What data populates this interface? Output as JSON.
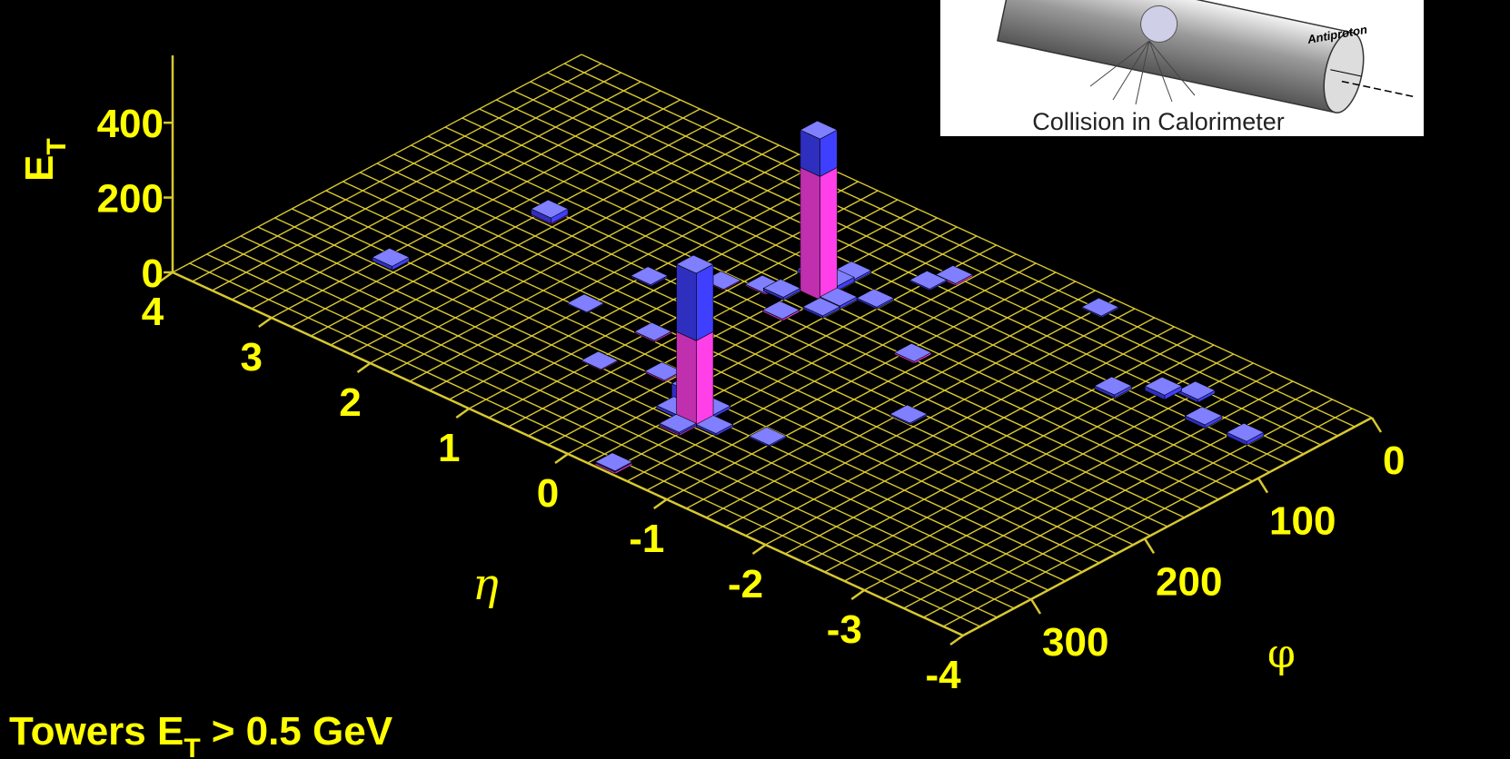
{
  "chart_data": {
    "type": "lego",
    "annotation": "Towers E",
    "annotation_sub": "T",
    "annotation_rest": "> 0.5 GeV",
    "xlabel": "η",
    "ylabel": "φ",
    "zlabel": "E",
    "zlabel_sub": "T",
    "xlim": [
      4,
      -4
    ],
    "xticks": [
      4,
      3,
      2,
      1,
      0,
      -1,
      -2,
      -3,
      -4
    ],
    "ylim": [
      0,
      360
    ],
    "yticks": [
      0,
      100,
      200,
      300
    ],
    "zlim": [
      0,
      580
    ],
    "zticks": [
      0,
      200,
      400
    ],
    "grid": true,
    "grid_color": "#d8c830",
    "text_color": "#ffff00",
    "em_color": "#ff3fe8",
    "had_color": "#3f3fff",
    "towers": {
      "eta": [
        0.3,
        -0.32,
        2.93,
        2.53,
        1.43,
        -0.29,
        -0.2,
        -1.41,
        -2.59,
        -3.5,
        -2.8,
        -2.3,
        -3.1,
        -0.86,
        -1.46,
        -0.92,
        -0.36,
        0.77,
        0.77,
        0.31,
        0.65,
        0.29,
        0.92,
        1.36,
        0.1,
        0.5,
        0.3,
        0.1,
        0.5,
        -0.12,
        -0.52,
        -0.32,
        -0.32,
        -0.1,
        0.3,
        -0.1
      ],
      "phi": [
        113,
        276,
        261,
        156,
        220,
        45,
        60,
        14,
        61,
        68,
        50,
        80,
        70,
        131,
        187,
        264,
        351,
        265,
        218,
        249,
        131,
        147,
        144,
        170,
        113,
        98,
        98,
        128,
        128,
        276,
        276,
        291,
        261,
        261,
        83,
        98
      ],
      "em": [
        330,
        230,
        0,
        3,
        0,
        5,
        0,
        0,
        0,
        0,
        0,
        0,
        0,
        5,
        0,
        0,
        5,
        3,
        4,
        4,
        4,
        5,
        3,
        0,
        0,
        0,
        0,
        0,
        0,
        0,
        0,
        4,
        0,
        0,
        0,
        0
      ],
      "had": [
        100,
        180,
        10,
        15,
        3,
        0,
        4,
        4,
        12,
        10,
        8,
        8,
        9,
        0,
        4,
        4,
        3,
        0,
        0,
        0,
        0,
        0,
        0,
        4,
        8,
        10,
        12,
        6,
        7,
        8,
        6,
        5,
        7,
        40,
        6,
        5
      ]
    }
  },
  "inset": {
    "label": "Antiproton",
    "caption": "Collision in Calorimeter"
  }
}
